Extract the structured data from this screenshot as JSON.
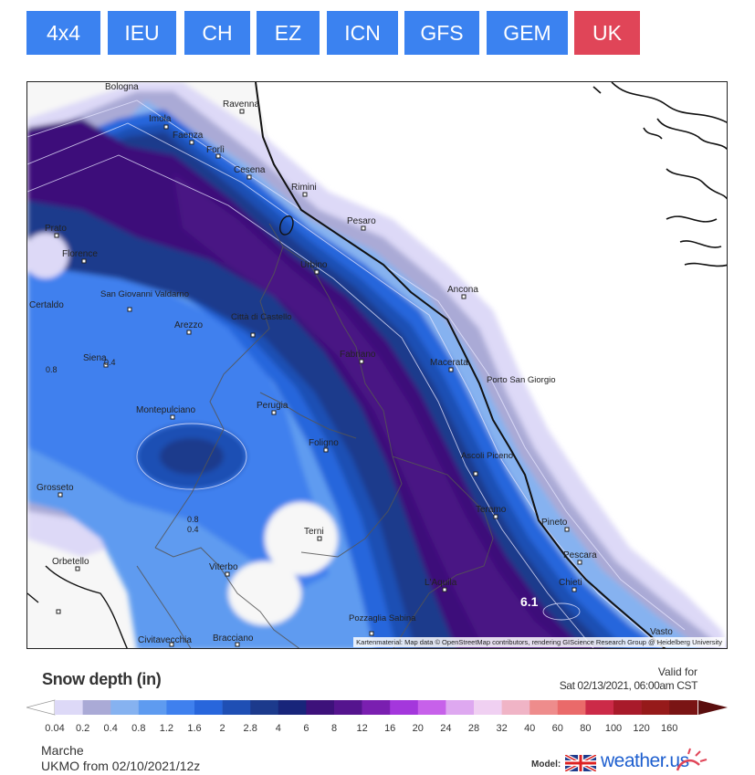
{
  "tabs": [
    {
      "label": "4x4",
      "active": false
    },
    {
      "label": "IEU",
      "active": false
    },
    {
      "label": "CH",
      "active": false
    },
    {
      "label": "EZ",
      "active": false
    },
    {
      "label": "ICN",
      "active": false
    },
    {
      "label": "GFS",
      "active": false
    },
    {
      "label": "GEM",
      "active": false
    },
    {
      "label": "UK",
      "active": true
    }
  ],
  "colors": {
    "tab": "#3b82f0",
    "tab_active": "#e04558",
    "brand": "#1e5fcf"
  },
  "map": {
    "cities": [
      "Bologna",
      "Ravenna",
      "Imola",
      "Faenza",
      "Forlì",
      "Cesena",
      "Rimini",
      "Pesaro",
      "Urbino",
      "Prato",
      "Florence",
      "Ancona",
      "San Giovanni Valdarno",
      "Certaldo",
      "Arezzo",
      "Città di Castello",
      "Fabriano",
      "Macerata",
      "Siena",
      "Porto San Giorgio",
      "Perugia",
      "Montepulciano",
      "Foligno",
      "Ascoli Piceno",
      "Grosseto",
      "Teramo",
      "Terni",
      "Pineto",
      "Pescara",
      "Orbetello",
      "Viterbo",
      "L'Aquila",
      "Chieti",
      "Pozzaglia Sabina",
      "Civitavecchia",
      "Bracciano",
      "Vasto"
    ],
    "contour_labels": [
      "0.8",
      "0.4",
      "0.8",
      "0.4",
      "6.1"
    ],
    "attribution": "Kartenmaterial: Map data © OpenStreetMap contributors, rendering GIScience Research Group @ Heidelberg University"
  },
  "legend": {
    "title": "Snow depth (in)",
    "valid_label": "Valid for",
    "valid_time": "Sat 02/13/2021, 06:00am CST",
    "values": [
      "0.04",
      "0.2",
      "0.4",
      "0.8",
      "1.2",
      "1.6",
      "2",
      "2.8",
      "4",
      "6",
      "8",
      "12",
      "16",
      "20",
      "24",
      "28",
      "32",
      "40",
      "60",
      "80",
      "100",
      "120",
      "160"
    ],
    "colors": [
      "#ddd9f7",
      "#aaaad6",
      "#86b2f0",
      "#5e9bf0",
      "#3f80ee",
      "#2866dc",
      "#1f4fb4",
      "#1c3a8c",
      "#18257a",
      "#3d117a",
      "#55148e",
      "#7a1fb0",
      "#a437dc",
      "#c761ea",
      "#dea8f0",
      "#f0d0f2",
      "#f0b4c6",
      "#ee8c8c",
      "#ea6a6a",
      "#cc2a48",
      "#a81a2a",
      "#961a1a",
      "#7a1414"
    ],
    "arrow_left_color": "#ffffff",
    "arrow_right_color": "#5a0e0e"
  },
  "footer": {
    "region": "Marche",
    "run": "UKMO from 02/10/2021/12z",
    "model_label": "Model:",
    "brand": "weather.us"
  }
}
